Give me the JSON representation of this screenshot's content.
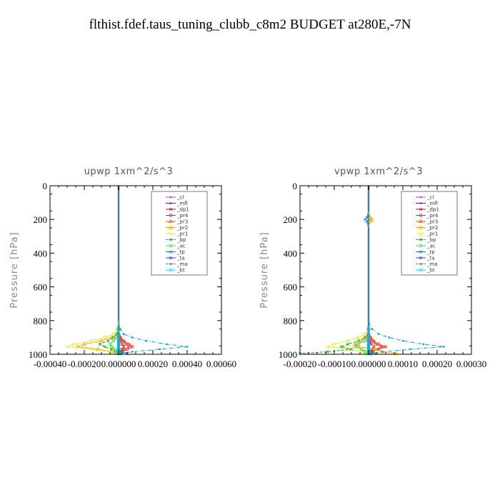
{
  "figure": {
    "title": "flthist.fdef.taus_tuning_clubb_c8m2  BUDGET at280E,-7N"
  },
  "chart_data": [
    {
      "type": "line",
      "title": "upwp   1xm^2/s^3",
      "ylabel": "Pressure [hPa]",
      "xlabel": "",
      "xlim": [
        -0.0004,
        0.0006
      ],
      "ylim": [
        1000,
        0
      ],
      "xticks": [
        -0.0004,
        -0.0002,
        0.0,
        0.0002,
        0.0004,
        0.0006
      ],
      "xtick_labels": [
        "-0.00040",
        "-0.00020",
        "0.000000",
        "0.00020",
        "0.00040",
        "0.00060"
      ],
      "yticks": [
        0,
        200,
        400,
        600,
        800,
        1000
      ],
      "ytick_labels": [
        "0",
        "200",
        "400",
        "600",
        "800",
        "1000"
      ],
      "grid": false,
      "legend_position": "top-right",
      "pressure_levels": [
        0,
        100,
        200,
        300,
        400,
        500,
        600,
        700,
        800,
        850,
        880,
        900,
        920,
        940,
        955,
        970,
        985,
        995
      ],
      "series": [
        {
          "name": "_cl",
          "color": "#8a55c8",
          "marker": "dot",
          "dash": "",
          "values": [
            0,
            0,
            0,
            0,
            0,
            0,
            0,
            0,
            0,
            0,
            0,
            0,
            0,
            0,
            0,
            0,
            0,
            0
          ]
        },
        {
          "name": "_mfl",
          "color": "#7a1a7a",
          "marker": "dot",
          "dash": "",
          "values": [
            0,
            0,
            0,
            0,
            0,
            0,
            0,
            0,
            0,
            0,
            0,
            0,
            0,
            0,
            0,
            0,
            0,
            0
          ]
        },
        {
          "name": "_dp1",
          "color": "#a0144a",
          "marker": "x",
          "dash": "",
          "values": [
            0,
            0,
            0,
            0,
            0,
            0,
            0,
            0,
            0,
            0,
            0,
            5e-06,
            1e-05,
            2e-05,
            3e-05,
            2e-05,
            1e-05,
            5e-06
          ]
        },
        {
          "name": "_pr4",
          "color": "#e6194b",
          "marker": "circle",
          "dash": "",
          "values": [
            0,
            0,
            0,
            0,
            0,
            0,
            0,
            0,
            0,
            0,
            0,
            1e-05,
            3e-05,
            6e-05,
            8e-05,
            5e-05,
            2e-05,
            1e-05
          ]
        },
        {
          "name": "_pr3",
          "color": "#ff4500",
          "marker": "triangle",
          "dash": "",
          "values": [
            0,
            0,
            0,
            0,
            0,
            0,
            0,
            0,
            0,
            0,
            0,
            1e-05,
            2e-05,
            4e-05,
            6e-05,
            3e-05,
            1e-05,
            0
          ]
        },
        {
          "name": "_pr2",
          "color": "#ffa500",
          "marker": "triangle",
          "dash": "",
          "values": [
            0,
            0,
            0,
            0,
            0,
            0,
            0,
            0,
            0,
            0,
            -1e-05,
            -4e-05,
            -0.0001,
            -0.0002,
            -0.00024,
            -0.00012,
            -4e-05,
            -1e-05
          ]
        },
        {
          "name": "_pr1",
          "color": "#e8e840",
          "marker": "circle",
          "dash": "",
          "values": [
            0,
            0,
            0,
            0,
            0,
            0,
            0,
            0,
            0,
            -1e-05,
            -3e-05,
            -8e-05,
            -0.00016,
            -0.00026,
            -0.0003,
            -0.00015,
            -5e-05,
            -1e-05
          ]
        },
        {
          "name": "_bp",
          "color": "#20a020",
          "marker": "x",
          "dash": "4,2",
          "values": [
            0,
            0,
            0,
            0,
            0,
            0,
            0,
            0,
            0,
            0,
            -1e-05,
            -3e-05,
            -6e-05,
            -0.00011,
            -8e-05,
            -4e-05,
            -2e-05,
            1e-05
          ]
        },
        {
          "name": "_ac",
          "color": "#40e040",
          "marker": "circle",
          "dash": "",
          "values": [
            0,
            0,
            0,
            0,
            0,
            0,
            0,
            0,
            0,
            0,
            0,
            -1e-05,
            -3e-05,
            -5e-05,
            -4e-05,
            -2e-05,
            -1e-05,
            0
          ]
        },
        {
          "name": "_tp",
          "color": "#1f77b4",
          "marker": "x",
          "dash": "",
          "values": [
            0,
            0,
            0,
            0,
            0,
            0,
            0,
            0,
            0,
            0,
            0,
            0,
            0,
            0,
            0,
            0,
            2e-05,
            5e-05
          ]
        },
        {
          "name": "_ta",
          "color": "#4040c0",
          "marker": "x",
          "dash": "",
          "values": [
            0,
            0,
            0,
            0,
            0,
            0,
            0,
            0,
            0,
            0,
            0,
            0,
            0,
            0,
            0,
            0,
            0,
            0
          ]
        },
        {
          "name": "_ma",
          "color": "#00a0b0",
          "marker": "dot",
          "dash": "5,2,1,2",
          "values": [
            0,
            0,
            0,
            0,
            0,
            0,
            0,
            0,
            0,
            1e-05,
            3e-05,
            8e-05,
            0.00016,
            0.00028,
            0.0004,
            0.00024,
            8e-05,
            2e-05
          ]
        },
        {
          "name": "_bt",
          "color": "#00e0e0",
          "marker": "circle",
          "dash": "",
          "values": [
            0,
            0,
            0,
            0,
            0,
            0,
            0,
            0,
            0,
            0,
            0,
            0,
            0,
            0,
            0,
            0,
            0,
            0
          ]
        }
      ]
    },
    {
      "type": "line",
      "title": "vpwp   1xm^2/s^3",
      "ylabel": "Pressure [hPa]",
      "xlabel": "",
      "xlim": [
        -0.0002,
        0.0003
      ],
      "ylim": [
        1000,
        0
      ],
      "xticks": [
        -0.0002,
        -0.0001,
        0.0,
        0.0001,
        0.0002,
        0.0003
      ],
      "xtick_labels": [
        "-0.00020",
        "-0.00010",
        "0.000000",
        "0.00010",
        "0.00020",
        "0.00030"
      ],
      "yticks": [
        0,
        200,
        400,
        600,
        800,
        1000
      ],
      "ytick_labels": [
        "0",
        "200",
        "400",
        "600",
        "800",
        "1000"
      ],
      "grid": false,
      "legend_position": "top-right",
      "pressure_levels": [
        0,
        100,
        150,
        190,
        200,
        210,
        250,
        300,
        400,
        500,
        600,
        700,
        800,
        850,
        880,
        900,
        920,
        940,
        955,
        970,
        985,
        995
      ],
      "series": [
        {
          "name": "_cl",
          "color": "#8a55c8",
          "marker": "dot",
          "dash": "",
          "values": [
            0,
            0,
            0,
            0,
            0,
            0,
            0,
            0,
            0,
            0,
            0,
            0,
            0,
            0,
            0,
            0,
            0,
            0,
            0,
            0,
            0,
            0
          ]
        },
        {
          "name": "_mfl",
          "color": "#7a1a7a",
          "marker": "dot",
          "dash": "",
          "values": [
            0,
            0,
            0,
            0,
            0,
            0,
            0,
            0,
            0,
            0,
            0,
            0,
            0,
            0,
            0,
            0,
            0,
            0,
            0,
            0,
            0,
            0
          ]
        },
        {
          "name": "_dp1",
          "color": "#a0144a",
          "marker": "x",
          "dash": "",
          "values": [
            0,
            0,
            0,
            0,
            0,
            0,
            0,
            0,
            0,
            0,
            0,
            0,
            0,
            0,
            0,
            0,
            3e-06,
            8e-06,
            1.5e-05,
            1e-05,
            5e-06,
            2e-06
          ]
        },
        {
          "name": "_pr4",
          "color": "#e6194b",
          "marker": "circle",
          "dash": "",
          "values": [
            0,
            0,
            0,
            0,
            0,
            0,
            0,
            0,
            0,
            0,
            0,
            0,
            0,
            0,
            0,
            5e-06,
            1e-05,
            2e-05,
            4e-05,
            3e-05,
            1e-05,
            5e-06
          ]
        },
        {
          "name": "_pr3",
          "color": "#ff4500",
          "marker": "triangle",
          "dash": "",
          "values": [
            0,
            0,
            0,
            0,
            0,
            0,
            0,
            0,
            0,
            0,
            0,
            0,
            0,
            0,
            0,
            5e-06,
            1.5e-05,
            3e-05,
            5e-05,
            2e-05,
            1e-05,
            5e-06
          ]
        },
        {
          "name": "_pr2",
          "color": "#ffa500",
          "marker": "triangle",
          "dash": "",
          "values": [
            0,
            0,
            0,
            5e-06,
            1e-05,
            5e-06,
            0,
            0,
            0,
            0,
            0,
            0,
            0,
            0,
            0,
            -1e-05,
            -2e-05,
            -4e-05,
            -3e-05,
            2e-05,
            4e-05,
            8e-05
          ]
        },
        {
          "name": "_pr1",
          "color": "#e8e840",
          "marker": "circle",
          "dash": "",
          "values": [
            0,
            0,
            0,
            0,
            0,
            0,
            0,
            0,
            0,
            0,
            0,
            0,
            0,
            0,
            -1e-05,
            -3e-05,
            -6e-05,
            -0.0001,
            -0.00012,
            -6e-05,
            -2e-05,
            -1e-05
          ]
        },
        {
          "name": "_bp",
          "color": "#20a020",
          "marker": "x",
          "dash": "4,2",
          "values": [
            0,
            0,
            0,
            0,
            0,
            0,
            0,
            0,
            0,
            0,
            0,
            0,
            0,
            0,
            0,
            -1e-05,
            -3e-05,
            -6e-05,
            -8e-05,
            -5e-05,
            -0.00012,
            -0.0002
          ]
        },
        {
          "name": "_ac",
          "color": "#40e040",
          "marker": "circle",
          "dash": "",
          "values": [
            0,
            0,
            0,
            0,
            0,
            0,
            0,
            0,
            0,
            0,
            0,
            0,
            0,
            0,
            0,
            0,
            -1e-05,
            -3e-05,
            -4e-05,
            -2e-05,
            -1e-05,
            0
          ]
        },
        {
          "name": "_tp",
          "color": "#1f77b4",
          "marker": "x",
          "dash": "",
          "values": [
            0,
            0,
            0,
            -5e-06,
            -1e-05,
            -5e-06,
            0,
            0,
            0,
            0,
            0,
            0,
            0,
            0,
            0,
            0,
            0,
            0,
            0,
            0,
            1e-05,
            2e-05
          ]
        },
        {
          "name": "_ta",
          "color": "#4040c0",
          "marker": "x",
          "dash": "",
          "values": [
            0,
            0,
            0,
            0,
            0,
            0,
            0,
            0,
            0,
            0,
            0,
            0,
            0,
            0,
            0,
            0,
            0,
            0,
            0,
            0,
            0,
            0
          ]
        },
        {
          "name": "_ma",
          "color": "#00a0b0",
          "marker": "dot",
          "dash": "5,2,1,2",
          "values": [
            0,
            0,
            0,
            0,
            0,
            0,
            0,
            0,
            0,
            0,
            0,
            0,
            0,
            1e-05,
            3e-05,
            6e-05,
            0.0001,
            0.00016,
            0.00022,
            0.00012,
            4e-05,
            1e-05
          ]
        },
        {
          "name": "_bt",
          "color": "#00e0e0",
          "marker": "circle",
          "dash": "",
          "values": [
            0,
            0,
            0,
            0,
            0,
            0,
            0,
            0,
            0,
            0,
            0,
            0,
            0,
            0,
            0,
            0,
            0,
            0,
            0,
            0,
            0,
            0
          ]
        }
      ]
    }
  ]
}
